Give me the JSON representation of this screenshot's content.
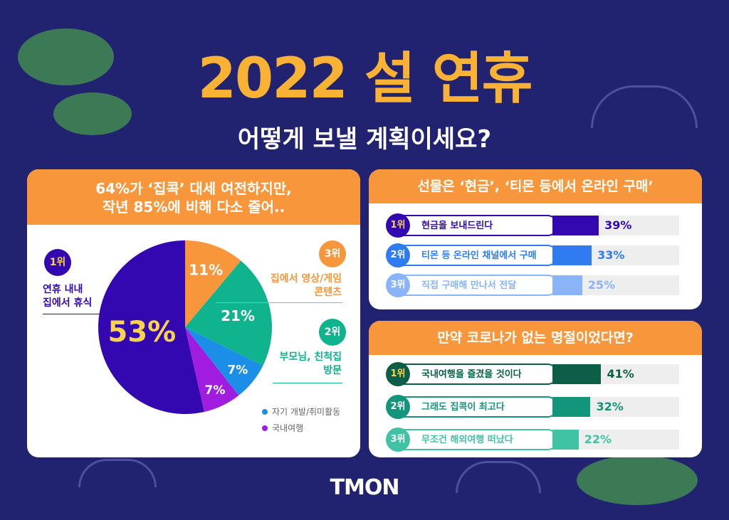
{
  "title": "2022 설 연휴",
  "subtitle": "어떻게 보낼 계획이세요?",
  "logo": "TMON",
  "colors": {
    "background": "#222370",
    "accent": "#f9b233",
    "header": "#f7963a"
  },
  "pie_card": {
    "header_line1": "64%가 ‘집콕’ 대세 여전하지만,",
    "header_line2": "작년 85%에 비해 다소 줄어..",
    "rank1": "1위",
    "rank1_label1": "연휴 내내",
    "rank1_label2": "집에서 휴식",
    "rank3": "3위",
    "rank3_label1": "집에서 영상/게임",
    "rank3_label2": "콘텐츠",
    "rank2": "2위",
    "rank2_label1": "부모님, 친척집",
    "rank2_label2": "방문",
    "legend": [
      "자기 개발/취미활동",
      "국내여행"
    ]
  },
  "chart_data": [
    {
      "type": "pie",
      "categories": [
        "집에서 영상/게임 콘텐츠",
        "부모님, 친척집 방문",
        "자기 개발/취미활동",
        "국내여행",
        "연휴 내내 집에서 휴식"
      ],
      "values": [
        11,
        21,
        7,
        7,
        53
      ],
      "labels": [
        "11%",
        "21%",
        "7%",
        "7%",
        "53%"
      ],
      "colors": [
        "#f7963a",
        "#0fb38e",
        "#1b8fe8",
        "#a01de0",
        "#3308b0"
      ],
      "legend": "bottom-right"
    },
    {
      "type": "bar",
      "title": "선물은 ‘현금’, ‘티몬 등에서 온라인 구매’",
      "categories": [
        "현금을 보내드린다",
        "티몬 등 온라인 채널에서 구매",
        "직접 구매해 만나서 전달"
      ],
      "ranks": [
        "1위",
        "2위",
        "3위"
      ],
      "values": [
        39,
        33,
        25
      ],
      "labels": [
        "39%",
        "33%",
        "25%"
      ],
      "colors": [
        "#3308b0",
        "#2f7bf0",
        "#8ab4f8"
      ]
    },
    {
      "type": "bar",
      "title": "만약 코로나가 없는 명절이었다면?",
      "categories": [
        "국내여행을 즐겼을 것이다",
        "그래도 집콕이 최고다",
        "무조건 해외여행 떠났다"
      ],
      "ranks": [
        "1위",
        "2위",
        "3위"
      ],
      "values": [
        41,
        32,
        22
      ],
      "labels": [
        "41%",
        "32%",
        "22%"
      ],
      "colors": [
        "#0c5e47",
        "#12957a",
        "#40c3a5"
      ]
    }
  ]
}
